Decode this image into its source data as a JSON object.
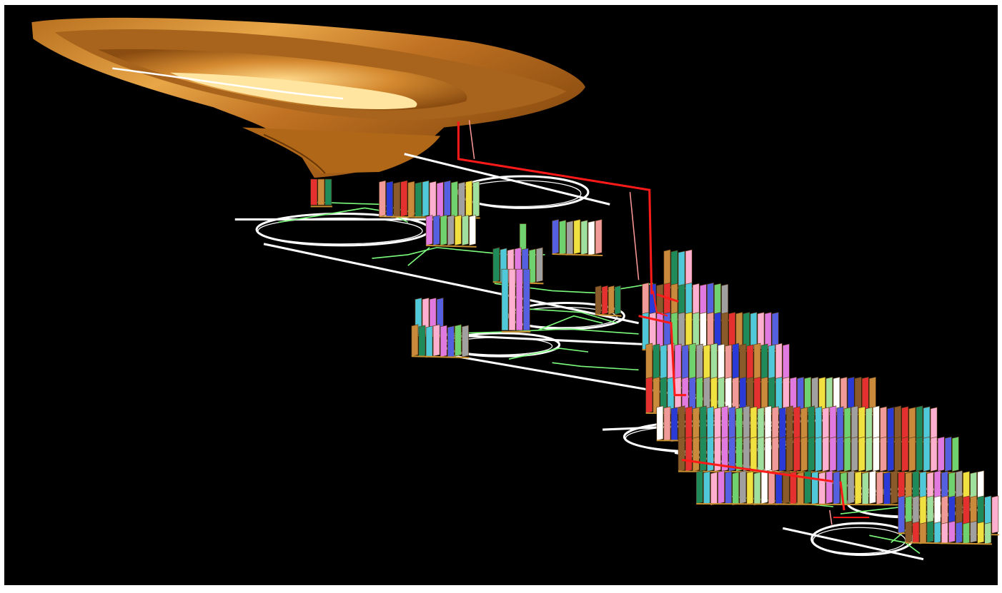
{
  "viewport": {
    "background": "#000000",
    "frame_color": "#ffffff"
  },
  "scene": {
    "subject": "3D mine model",
    "pit": {
      "colors": [
        "#a85f14",
        "#c87a25",
        "#e09a3c",
        "#f5c170",
        "#7a420c"
      ]
    },
    "ramps": {
      "color": "#ffffff",
      "level_count": 7
    },
    "drifts": {
      "color": "#7CFC7C"
    },
    "shaft": {
      "color": "#ff1a1a",
      "secondary_color": "#ff9999"
    },
    "stope_colors": [
      "#e53030",
      "#2a3ad6",
      "#ffffff",
      "#f0e040",
      "#6fd26f",
      "#e07ae0",
      "#4fc9d9",
      "#c98a3c",
      "#8a5a2a",
      "#f09a9a",
      "#9fe09f",
      "#a0a0a0",
      "#5560e0",
      "#ffb0d0",
      "#1f8a5a"
    ]
  }
}
